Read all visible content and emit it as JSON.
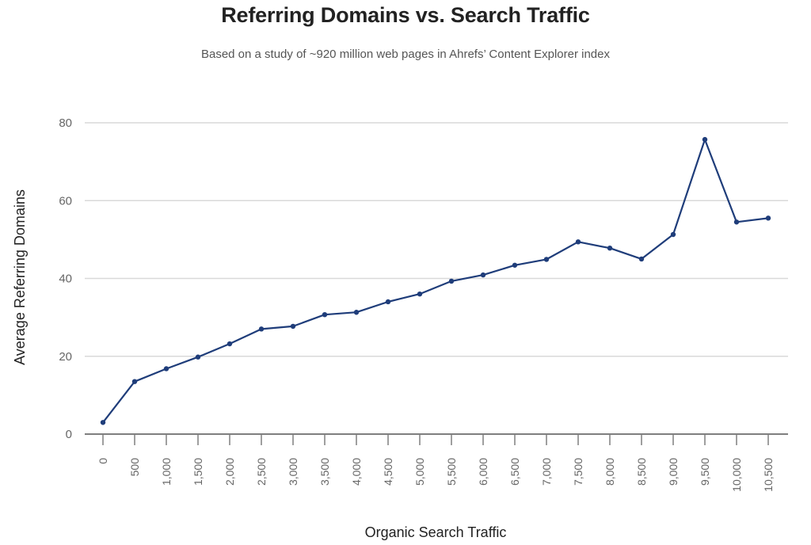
{
  "chart_data": {
    "type": "line",
    "title": "Referring Domains vs. Search Traffic",
    "subtitle": "Based on a study of ~920 million web pages in Ahrefs’ Content Explorer index",
    "xlabel": "Organic Search Traffic",
    "ylabel": "Average Referring Domains",
    "x_tick_labels": [
      "0",
      "500",
      "1,000",
      "1,500",
      "2,000",
      "2,500",
      "3,000",
      "3,500",
      "4,000",
      "4,500",
      "5,000",
      "5,500",
      "6,000",
      "6,500",
      "7,000",
      "7,500",
      "8,000",
      "8,500",
      "9,000",
      "9,500",
      "10,000",
      "10,500"
    ],
    "y_ticks": [
      0,
      20,
      40,
      60,
      80
    ],
    "ylim": [
      0,
      80
    ],
    "grid": "horizontal",
    "legend": "none",
    "line_color": "#1f3d7a",
    "grid_color": "#d9d9d9",
    "axis_color": "#7f7f7f",
    "series": [
      {
        "x": [
          0,
          500,
          1000,
          1500,
          2000,
          2500,
          3000,
          3500,
          4000,
          4500,
          5000,
          5500,
          6000,
          6500,
          7000,
          7500,
          8000,
          8500,
          9000,
          9500,
          10000,
          10500
        ],
        "values": [
          3,
          13.5,
          16.8,
          19.8,
          23.2,
          27.0,
          27.7,
          30.7,
          31.3,
          34.0,
          36.0,
          39.3,
          40.9,
          43.4,
          44.9,
          49.4,
          47.8,
          45.0,
          51.3,
          75.7,
          54.5,
          55.5
        ]
      }
    ]
  }
}
